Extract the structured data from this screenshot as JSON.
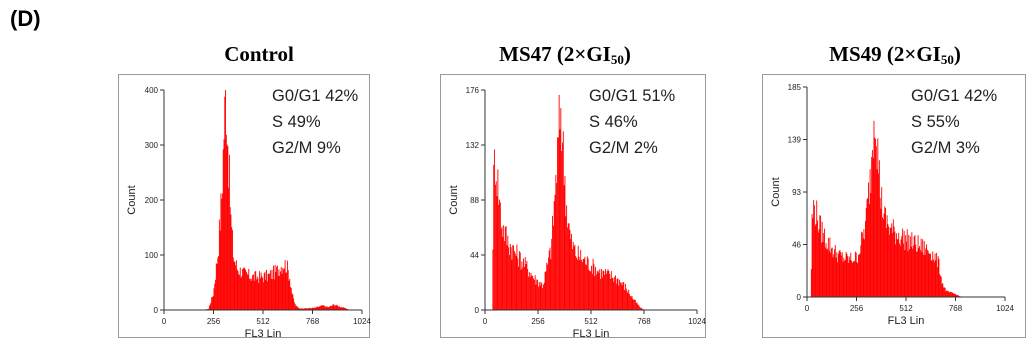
{
  "figure": {
    "panel_label": "(D)"
  },
  "chart_data": [
    {
      "type": "area",
      "title": "Control",
      "title_sub": "",
      "xlabel": "FL3 Lin",
      "ylabel": "Count",
      "xlim": [
        0,
        1024
      ],
      "ylim": [
        0,
        400
      ],
      "x_ticks": [
        "0",
        "256",
        "512",
        "768",
        "1024"
      ],
      "y_ticks": [
        "0",
        "100",
        "200",
        "300",
        "400"
      ],
      "color": "#ff0000",
      "stats": [
        "G0/G1 42%",
        "S 49%",
        "G2/M 9%"
      ],
      "x": [
        200,
        230,
        255,
        280,
        300,
        310,
        320,
        330,
        345,
        360,
        380,
        420,
        460,
        500,
        540,
        580,
        600,
        620,
        635,
        650,
        665,
        680,
        700,
        740,
        780,
        820,
        850,
        880,
        910,
        940,
        960
      ],
      "y": [
        0,
        2,
        30,
        110,
        220,
        330,
        400,
        310,
        170,
        95,
        75,
        65,
        60,
        60,
        62,
        70,
        78,
        85,
        80,
        60,
        25,
        8,
        3,
        3,
        4,
        8,
        5,
        10,
        6,
        3,
        0
      ]
    },
    {
      "type": "area",
      "title": "MS47 (2×GI",
      "title_sub": "50",
      "title_suffix": ")",
      "xlabel": "FL3 Lin",
      "ylabel": "Count",
      "xlim": [
        0,
        1024
      ],
      "ylim": [
        0,
        176
      ],
      "x_ticks": [
        "0",
        "256",
        "512",
        "768",
        "1024"
      ],
      "y_ticks": [
        "0",
        "44",
        "88",
        "132",
        "176"
      ],
      "color": "#ff0000",
      "stats": [
        "G0/G1 51%",
        "S 46%",
        "G2/M 2%"
      ],
      "x": [
        35,
        40,
        48,
        60,
        80,
        110,
        150,
        200,
        240,
        280,
        320,
        345,
        365,
        380,
        395,
        415,
        440,
        480,
        520,
        560,
        600,
        640,
        680,
        720,
        750,
        770
      ],
      "y": [
        0,
        95,
        125,
        105,
        70,
        55,
        45,
        35,
        25,
        20,
        50,
        110,
        165,
        120,
        80,
        55,
        45,
        40,
        35,
        30,
        28,
        25,
        18,
        8,
        2,
        0
      ]
    },
    {
      "type": "area",
      "title": "MS49 (2×GI",
      "title_sub": "50",
      "title_suffix": ")",
      "xlabel": "FL3 Lin",
      "ylabel": "Count",
      "xlim": [
        0,
        1024
      ],
      "ylim": [
        0,
        185
      ],
      "x_ticks": [
        "0",
        "256",
        "512",
        "768",
        "1024"
      ],
      "y_ticks": [
        "0",
        "46",
        "93",
        "139",
        "185"
      ],
      "color": "#ff0000",
      "stats": [
        "G0/G1 42%",
        "S 55%",
        "G2/M 3%"
      ],
      "x": [
        20,
        25,
        35,
        50,
        70,
        100,
        140,
        180,
        220,
        260,
        300,
        330,
        350,
        365,
        380,
        400,
        430,
        470,
        520,
        580,
        640,
        680,
        700,
        720,
        760,
        800
      ],
      "y": [
        0,
        65,
        80,
        72,
        60,
        50,
        40,
        35,
        33,
        35,
        60,
        110,
        175,
        130,
        90,
        70,
        60,
        55,
        50,
        45,
        40,
        30,
        12,
        5,
        3,
        0
      ]
    }
  ]
}
